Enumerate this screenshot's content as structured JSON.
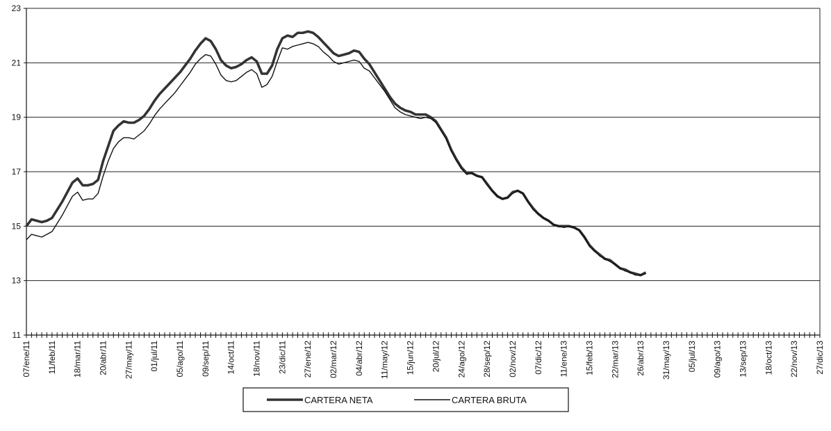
{
  "chart_data": {
    "type": "line",
    "categories": [
      "07/ene/11",
      null,
      null,
      null,
      null,
      "11/feb/11",
      null,
      null,
      null,
      null,
      "18/mar/11",
      null,
      null,
      null,
      null,
      "20/abr/11",
      null,
      null,
      null,
      null,
      "27/may/11",
      null,
      null,
      null,
      null,
      "01/jul/11",
      null,
      null,
      null,
      null,
      "05/ago/11",
      null,
      null,
      null,
      null,
      "09/sep/11",
      null,
      null,
      null,
      null,
      "14/oct/11",
      null,
      null,
      null,
      null,
      "18/nov/11",
      null,
      null,
      null,
      null,
      "23/dic/11",
      null,
      null,
      null,
      null,
      "27/ene/12",
      null,
      null,
      null,
      null,
      "02/mar/12",
      null,
      null,
      null,
      null,
      "04/abr/12",
      null,
      null,
      null,
      null,
      "11/may/12",
      null,
      null,
      null,
      null,
      "15/jun/12",
      null,
      null,
      null,
      null,
      "20/jul/12",
      null,
      null,
      null,
      null,
      "24/ago/12",
      null,
      null,
      null,
      null,
      "28/sep/12",
      null,
      null,
      null,
      null,
      "02/nov/12",
      null,
      null,
      null,
      null,
      "07/dic/12",
      null,
      null,
      null,
      null,
      "11/ene/13",
      null,
      null,
      null,
      null,
      "15/feb/13",
      null,
      null,
      null,
      null,
      "22/mar/13",
      null,
      null,
      null,
      null,
      "26/abr/13",
      null,
      null,
      null,
      null,
      "31/may/13",
      null,
      null,
      null,
      null,
      "05/jul/13",
      null,
      null,
      null,
      null,
      "09/ago/13",
      null,
      null,
      null,
      null,
      "13/sep/13",
      null,
      null,
      null,
      null,
      "18/oct/13",
      null,
      null,
      null,
      null,
      "22/nov/13",
      null,
      null,
      null,
      null,
      "27/dic/13"
    ],
    "series": [
      {
        "name": "CARTERA NETA",
        "color": "#333333",
        "values": [
          15.0,
          15.25,
          15.2,
          15.15,
          15.2,
          15.3,
          15.6,
          15.9,
          16.25,
          16.6,
          16.75,
          16.5,
          16.5,
          16.55,
          16.7,
          17.4,
          17.95,
          18.5,
          18.7,
          18.85,
          18.8,
          18.8,
          18.9,
          19.05,
          19.3,
          19.6,
          19.85,
          20.05,
          20.25,
          20.45,
          20.65,
          20.9,
          21.15,
          21.45,
          21.7,
          21.9,
          21.8,
          21.5,
          21.1,
          20.9,
          20.8,
          20.85,
          20.95,
          21.1,
          21.2,
          21.05,
          20.6,
          20.6,
          20.9,
          21.5,
          21.9,
          22.0,
          21.95,
          22.1,
          22.1,
          22.15,
          22.1,
          21.95,
          21.75,
          21.55,
          21.35,
          21.25,
          21.3,
          21.35,
          21.45,
          21.4,
          21.15,
          20.95,
          20.65,
          20.35,
          20.05,
          19.75,
          19.5,
          19.35,
          19.25,
          19.2,
          19.1,
          19.1,
          19.1,
          19.0,
          18.85,
          18.55,
          18.25,
          17.8,
          17.45,
          17.15,
          16.95,
          16.95,
          16.85,
          16.8,
          16.55,
          16.3,
          16.1,
          16.0,
          16.05,
          16.25,
          16.3,
          16.2,
          15.9,
          15.65,
          15.45,
          15.3,
          15.2,
          15.05,
          15.0,
          15.0,
          15.0,
          14.95,
          14.85,
          14.6,
          14.3,
          14.1,
          13.95,
          13.8,
          13.75,
          13.6,
          13.45,
          13.4,
          13.3,
          13.25,
          13.2,
          13.3,
          null,
          null,
          null,
          null,
          null,
          null,
          null,
          null,
          null,
          null,
          null,
          null,
          null,
          null,
          null,
          null,
          null,
          null,
          null,
          null,
          null,
          null,
          null,
          null,
          null,
          null,
          null,
          null,
          null,
          null,
          null,
          null,
          null,
          null
        ]
      },
      {
        "name": "CARTERA BRUTA",
        "color": "#111111",
        "values": [
          14.5,
          14.7,
          14.65,
          14.6,
          14.7,
          14.8,
          15.1,
          15.4,
          15.75,
          16.1,
          16.25,
          15.95,
          16.0,
          16.0,
          16.2,
          16.85,
          17.4,
          17.85,
          18.1,
          18.25,
          18.25,
          18.2,
          18.35,
          18.5,
          18.75,
          19.05,
          19.3,
          19.5,
          19.7,
          19.9,
          20.15,
          20.4,
          20.65,
          20.95,
          21.15,
          21.3,
          21.25,
          20.95,
          20.55,
          20.35,
          20.3,
          20.35,
          20.5,
          20.65,
          20.75,
          20.6,
          20.1,
          20.2,
          20.5,
          21.05,
          21.55,
          21.5,
          21.6,
          21.65,
          21.7,
          21.75,
          21.7,
          21.6,
          21.4,
          21.25,
          21.05,
          20.95,
          21.0,
          21.05,
          21.1,
          21.05,
          20.8,
          20.7,
          20.45,
          20.2,
          19.95,
          19.65,
          19.35,
          19.2,
          19.1,
          19.05,
          19.0,
          18.95,
          19.0,
          18.95,
          18.8,
          18.5,
          18.2,
          17.75,
          17.4,
          17.1,
          16.9,
          16.95,
          16.85,
          16.8,
          16.5,
          16.3,
          16.1,
          16.0,
          16.05,
          16.2,
          16.3,
          16.2,
          15.9,
          15.6,
          15.45,
          15.3,
          15.2,
          15.05,
          15.0,
          14.95,
          15.0,
          14.95,
          14.85,
          14.6,
          14.25,
          14.1,
          13.9,
          13.8,
          13.7,
          13.6,
          13.45,
          13.35,
          13.3,
          13.2,
          13.2,
          13.25,
          null,
          null,
          null,
          null,
          null,
          null,
          null,
          null,
          null,
          null,
          null,
          null,
          null,
          null,
          null,
          null,
          null,
          null,
          null,
          null,
          null,
          null,
          null,
          null,
          null,
          null,
          null,
          null,
          null,
          null,
          null,
          null,
          null,
          null
        ]
      }
    ],
    "ylim": [
      11,
      23
    ],
    "yticks": [
      11,
      13,
      15,
      17,
      19,
      21,
      23
    ],
    "grid": true
  }
}
